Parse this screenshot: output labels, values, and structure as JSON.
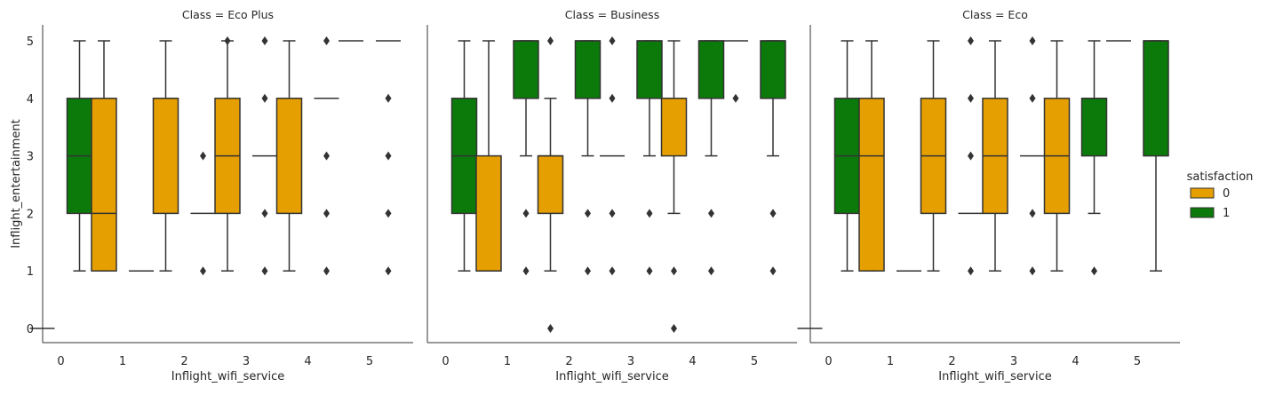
{
  "chart_data": {
    "type": "box",
    "x_label": "Inflight_wifi_service",
    "y_label": "Inflight_entertainment",
    "categories": [
      0,
      1,
      2,
      3,
      4,
      5
    ],
    "y_ticks": [
      0,
      1,
      2,
      3,
      4,
      5
    ],
    "ylim": [
      -0.25,
      5.25
    ],
    "grid": false,
    "legend": {
      "title": "satisfaction",
      "placement": "right",
      "items": [
        {
          "label": "0",
          "color": "#E69F00"
        },
        {
          "label": "1",
          "color": "#0B7A0B"
        }
      ]
    },
    "hue_levels": [
      "0",
      "1"
    ],
    "colors": {
      "0": "#E69F00",
      "1": "#0B7A0B"
    },
    "panels": [
      {
        "title": "Class = Eco Plus",
        "boxes": [
          {
            "x": 0,
            "hue": "1",
            "q1": 2,
            "median": 3,
            "q3": 4,
            "whislo": 1,
            "whishi": 5,
            "fliers": []
          },
          {
            "x": 1,
            "hue": "0",
            "q1": 1,
            "median": 2,
            "q3": 4,
            "whislo": 1,
            "whishi": 5,
            "fliers": []
          },
          {
            "x": 2,
            "hue": "0",
            "q1": 2,
            "median": 4,
            "q3": 4,
            "whislo": 1,
            "whishi": 5,
            "fliers": []
          },
          {
            "x": 3,
            "hue": "0",
            "q1": 2,
            "median": 3,
            "q3": 4,
            "whislo": 1,
            "whishi": 5,
            "fliers": [
              5
            ]
          },
          {
            "x": 4,
            "hue": "0",
            "q1": 2,
            "median": 4,
            "q3": 4,
            "whislo": 1,
            "whishi": 5,
            "fliers": []
          }
        ],
        "flat": [
          {
            "x": 0,
            "hue": "0",
            "value": 0
          },
          {
            "x": 1,
            "hue": "1",
            "value": 1
          },
          {
            "x": 2,
            "hue": "1",
            "value": 2,
            "fliers": [
              3,
              1
            ]
          },
          {
            "x": 3,
            "hue": "1",
            "value": 3,
            "fliers": [
              5,
              4,
              2,
              1
            ]
          },
          {
            "x": 4,
            "hue": "1",
            "value": 4,
            "fliers": [
              5,
              3,
              2,
              1
            ]
          },
          {
            "x": 5,
            "hue": "0",
            "value": 5
          },
          {
            "x": 5,
            "hue": "1",
            "value": 5,
            "fliers": [
              4,
              3,
              2,
              1
            ]
          }
        ]
      },
      {
        "title": "Class = Business",
        "boxes": [
          {
            "x": 0,
            "hue": "1",
            "q1": 2,
            "median": 3,
            "q3": 4,
            "whislo": 1,
            "whishi": 5,
            "fliers": []
          },
          {
            "x": 1,
            "hue": "0",
            "q1": 1,
            "median": 1,
            "q3": 3,
            "whislo": 1,
            "whishi": 5,
            "fliers": []
          },
          {
            "x": 1,
            "hue": "1",
            "q1": 4,
            "median": 5,
            "q3": 5,
            "whislo": 3,
            "whishi": 5,
            "fliers": [
              2,
              1
            ]
          },
          {
            "x": 2,
            "hue": "0",
            "q1": 2,
            "median": 3,
            "q3": 3,
            "whislo": 1,
            "whishi": 4,
            "fliers": [
              5,
              0
            ]
          },
          {
            "x": 2,
            "hue": "1",
            "q1": 4,
            "median": 5,
            "q3": 5,
            "whislo": 3,
            "whishi": 5,
            "fliers": [
              2,
              1
            ]
          },
          {
            "x": 3,
            "hue": "1",
            "q1": 4,
            "median": 5,
            "q3": 5,
            "whislo": 3,
            "whishi": 5,
            "fliers": [
              2,
              1
            ]
          },
          {
            "x": 4,
            "hue": "0",
            "q1": 3,
            "median": 4,
            "q3": 4,
            "whislo": 2,
            "whishi": 5,
            "fliers": [
              1,
              0
            ]
          },
          {
            "x": 4,
            "hue": "1",
            "q1": 4,
            "median": 5,
            "q3": 5,
            "whislo": 3,
            "whishi": 5,
            "fliers": [
              2,
              1
            ]
          },
          {
            "x": 5,
            "hue": "1",
            "q1": 4,
            "median": 5,
            "q3": 5,
            "whislo": 3,
            "whishi": 5,
            "fliers": [
              2,
              1
            ]
          }
        ],
        "flat": [
          {
            "x": 3,
            "hue": "0",
            "value": 3,
            "fliers": [
              5,
              4,
              2,
              1
            ]
          },
          {
            "x": 5,
            "hue": "0",
            "value": 5,
            "fliers": [
              4
            ]
          }
        ]
      },
      {
        "title": "Class = Eco",
        "boxes": [
          {
            "x": 0,
            "hue": "1",
            "q1": 2,
            "median": 3,
            "q3": 4,
            "whislo": 1,
            "whishi": 5,
            "fliers": []
          },
          {
            "x": 1,
            "hue": "0",
            "q1": 1,
            "median": 3,
            "q3": 4,
            "whislo": 1,
            "whishi": 5,
            "fliers": []
          },
          {
            "x": 2,
            "hue": "0",
            "q1": 2,
            "median": 3,
            "q3": 4,
            "whislo": 1,
            "whishi": 5,
            "fliers": []
          },
          {
            "x": 3,
            "hue": "0",
            "q1": 2,
            "median": 3,
            "q3": 4,
            "whislo": 1,
            "whishi": 5,
            "fliers": []
          },
          {
            "x": 4,
            "hue": "0",
            "q1": 2,
            "median": 3,
            "q3": 4,
            "whislo": 1,
            "whishi": 5,
            "fliers": []
          },
          {
            "x": 4,
            "hue": "1",
            "q1": 3,
            "median": 4,
            "q3": 4,
            "whislo": 2,
            "whishi": 5,
            "fliers": [
              1
            ]
          },
          {
            "x": 5,
            "hue": "1",
            "q1": 3,
            "median": 5,
            "q3": 5,
            "whislo": 1,
            "whishi": 5,
            "fliers": []
          }
        ],
        "flat": [
          {
            "x": 0,
            "hue": "0",
            "value": 0
          },
          {
            "x": 1,
            "hue": "1",
            "value": 1
          },
          {
            "x": 2,
            "hue": "1",
            "value": 2,
            "fliers": [
              5,
              4,
              3,
              1
            ]
          },
          {
            "x": 3,
            "hue": "1",
            "value": 3,
            "fliers": [
              5,
              4,
              2,
              1
            ]
          },
          {
            "x": 5,
            "hue": "0",
            "value": 5
          }
        ]
      }
    ]
  }
}
